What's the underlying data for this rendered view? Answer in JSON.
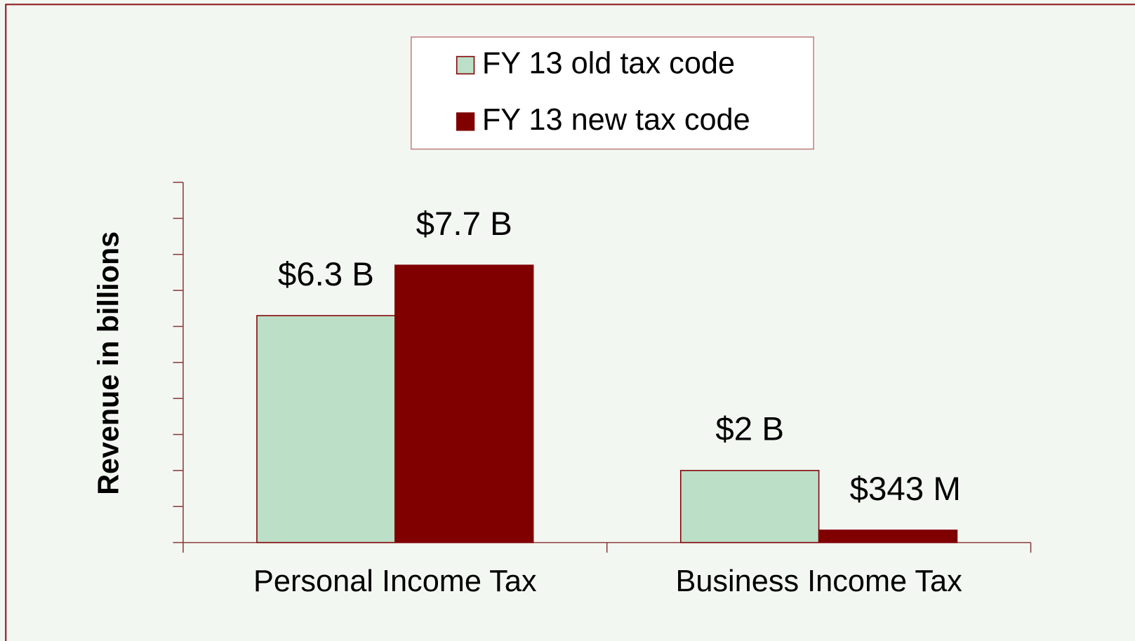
{
  "chart_data": {
    "type": "bar",
    "y_label": "Revenue in billions",
    "categories": [
      "Personal Income Tax",
      "Business Income Tax"
    ],
    "series": [
      {
        "name": "FY 13 old tax code",
        "color": "#bcdfc8",
        "values": [
          6.3,
          2
        ],
        "value_labels": [
          "$6.3 B",
          "$2 B"
        ]
      },
      {
        "name": "FY 13 new tax code",
        "color": "#800000",
        "values": [
          7.7,
          0.343
        ],
        "value_labels": [
          "$7.7 B",
          "$343 M"
        ]
      }
    ],
    "ylim": [
      0,
      10
    ],
    "yticks": [
      0,
      1,
      2,
      3,
      4,
      5,
      6,
      7,
      8,
      9,
      10
    ]
  }
}
